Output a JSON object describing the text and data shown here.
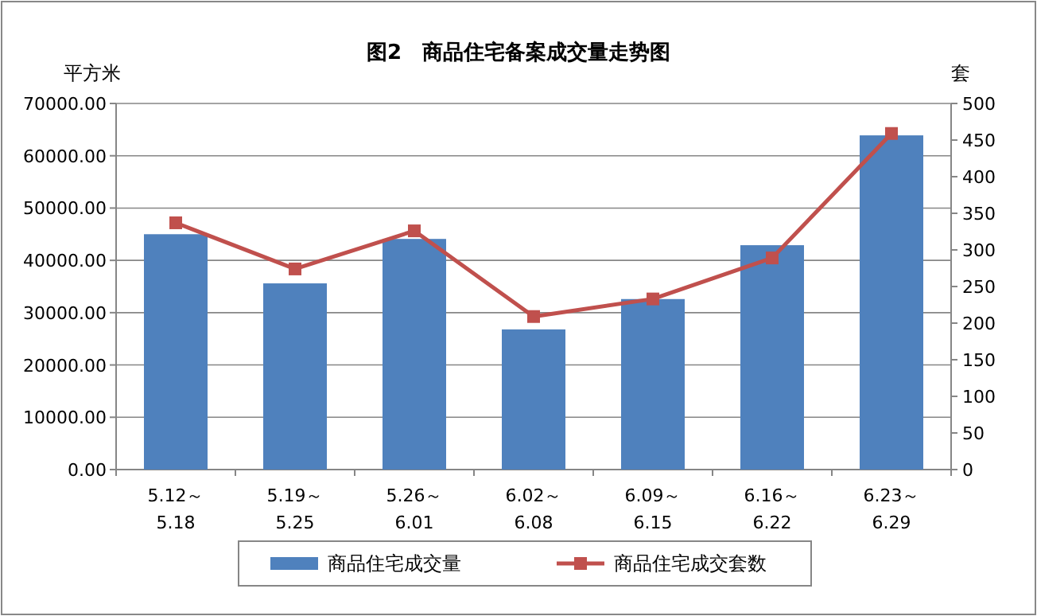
{
  "chart_data": {
    "type": "bar",
    "title": "图2　商品住宅备案成交量走势图",
    "ylabel": "平方米",
    "y2label": "套",
    "categories": [
      "5.12～5.18",
      "5.19～5.25",
      "5.26～6.01",
      "6.02～6.08",
      "6.09～6.15",
      "6.16～6.22",
      "6.23～6.29"
    ],
    "series": [
      {
        "name": "商品住宅成交量",
        "color": "#4f81bd",
        "values": [
          45000,
          35600,
          44100,
          26800,
          32600,
          42900,
          63900
        ]
      },
      {
        "name": "商品住宅成交套数",
        "type": "line",
        "axis": "y2",
        "color": "#c0504d",
        "marker": "square",
        "values": [
          337,
          274,
          326,
          209,
          233,
          289,
          459
        ]
      }
    ],
    "ylim": [
      0,
      70000
    ],
    "yticks": [
      {
        "value": 0,
        "label": "0.00"
      },
      {
        "value": 10000,
        "label": "10000.00"
      },
      {
        "value": 20000,
        "label": "20000.00"
      },
      {
        "value": 30000,
        "label": "30000.00"
      },
      {
        "value": 40000,
        "label": "40000.00"
      },
      {
        "value": 50000,
        "label": "50000.00"
      },
      {
        "value": 60000,
        "label": "60000.00"
      },
      {
        "value": 70000,
        "label": "70000.00"
      }
    ],
    "y2lim": [
      0,
      500
    ],
    "y2ticks": [
      0,
      50,
      100,
      150,
      200,
      250,
      300,
      350,
      400,
      450,
      500
    ],
    "grid": "y",
    "legend": "bottom"
  }
}
